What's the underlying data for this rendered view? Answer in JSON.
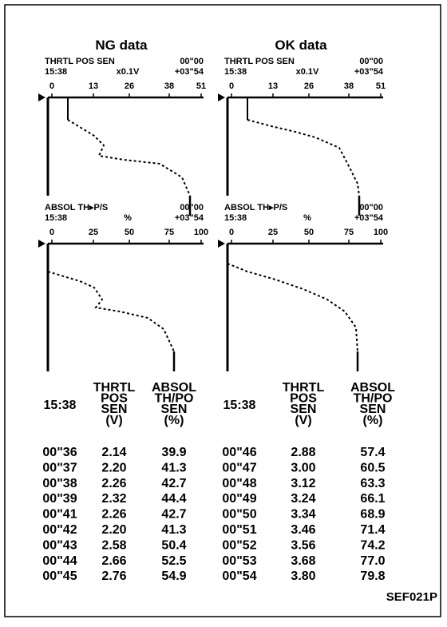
{
  "panels": [
    {
      "title": "NG data",
      "graphs": [
        {
          "label": "THRTL  POS  SEN",
          "time": "15:38",
          "unit": "x0.1V",
          "start": "00\"00",
          "span": "+03\"54",
          "ticks": [
            "0",
            "13",
            "26",
            "38",
            "51"
          ]
        },
        {
          "label": "ABSOL  TH▸P/S",
          "time": "15:38",
          "unit": "%",
          "start": "00\"00",
          "span": "+03\"54",
          "ticks": [
            "0",
            "25",
            "50",
            "75",
            "100"
          ]
        }
      ],
      "table": {
        "header": [
          "15:38",
          "THRTL\nPOS\nSEN\n(V)",
          "ABSOL\nTH/PO\nSEN\n(%)"
        ],
        "rows": [
          [
            "00\"36",
            "2.14",
            "39.9"
          ],
          [
            "00\"37",
            "2.20",
            "41.3"
          ],
          [
            "00\"38",
            "2.26",
            "42.7"
          ],
          [
            "00\"39",
            "2.32",
            "44.4"
          ],
          [
            "00\"41",
            "2.26",
            "42.7"
          ],
          [
            "00\"42",
            "2.20",
            "41.3"
          ],
          [
            "00\"43",
            "2.58",
            "50.4"
          ],
          [
            "00\"44",
            "2.66",
            "52.5"
          ],
          [
            "00\"45",
            "2.76",
            "54.9"
          ]
        ]
      }
    },
    {
      "title": "OK data",
      "graphs": [
        {
          "label": "THRTL  POS  SEN",
          "time": "15:38",
          "unit": "x0.1V",
          "start": "00\"00",
          "span": "+03\"54",
          "ticks": [
            "0",
            "13",
            "26",
            "38",
            "51"
          ]
        },
        {
          "label": "ABSOL  TH▸P/S",
          "time": "15:38",
          "unit": "%",
          "start": "00\"00",
          "span": "+03\"54",
          "ticks": [
            "0",
            "25",
            "50",
            "75",
            "100"
          ]
        }
      ],
      "table": {
        "header": [
          "15:38",
          "THRTL\nPOS\nSEN\n(V)",
          "ABSOL\nTH/PO\nSEN\n(%)"
        ],
        "rows": [
          [
            "00\"46",
            "2.88",
            "57.4"
          ],
          [
            "00\"47",
            "3.00",
            "60.5"
          ],
          [
            "00\"48",
            "3.12",
            "63.3"
          ],
          [
            "00\"49",
            "3.24",
            "66.1"
          ],
          [
            "00\"50",
            "3.34",
            "68.9"
          ],
          [
            "00\"51",
            "3.46",
            "71.4"
          ],
          [
            "00\"52",
            "3.56",
            "74.2"
          ],
          [
            "00\"53",
            "3.68",
            "77.0"
          ],
          [
            "00\"54",
            "3.80",
            "79.8"
          ]
        ]
      }
    }
  ],
  "code": "SEF021P"
}
